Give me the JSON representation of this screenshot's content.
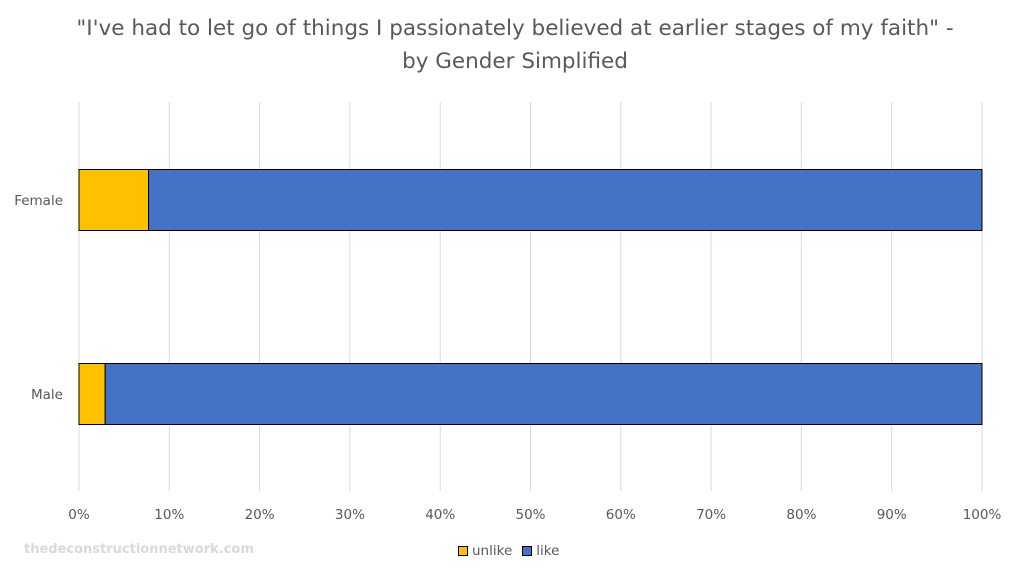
{
  "chart_data": {
    "type": "bar",
    "orientation": "horizontal",
    "stacked": "percent",
    "title": "\"I've had to let go of things I passionately believed at earlier stages of my faith\" - by Gender Simplified",
    "categories": [
      "Female",
      "Male"
    ],
    "series": [
      {
        "name": "unlike",
        "color": "#FFC000",
        "values": [
          7.7,
          2.9
        ]
      },
      {
        "name": "like",
        "color": "#4472C4",
        "values": [
          92.3,
          97.1
        ]
      }
    ],
    "x_ticks": [
      "0%",
      "10%",
      "20%",
      "30%",
      "40%",
      "50%",
      "60%",
      "70%",
      "80%",
      "90%",
      "100%"
    ],
    "xlim": [
      0,
      100
    ],
    "grid": true,
    "legend_position": "bottom"
  },
  "watermark": "thedeconstructionnetwork.com"
}
